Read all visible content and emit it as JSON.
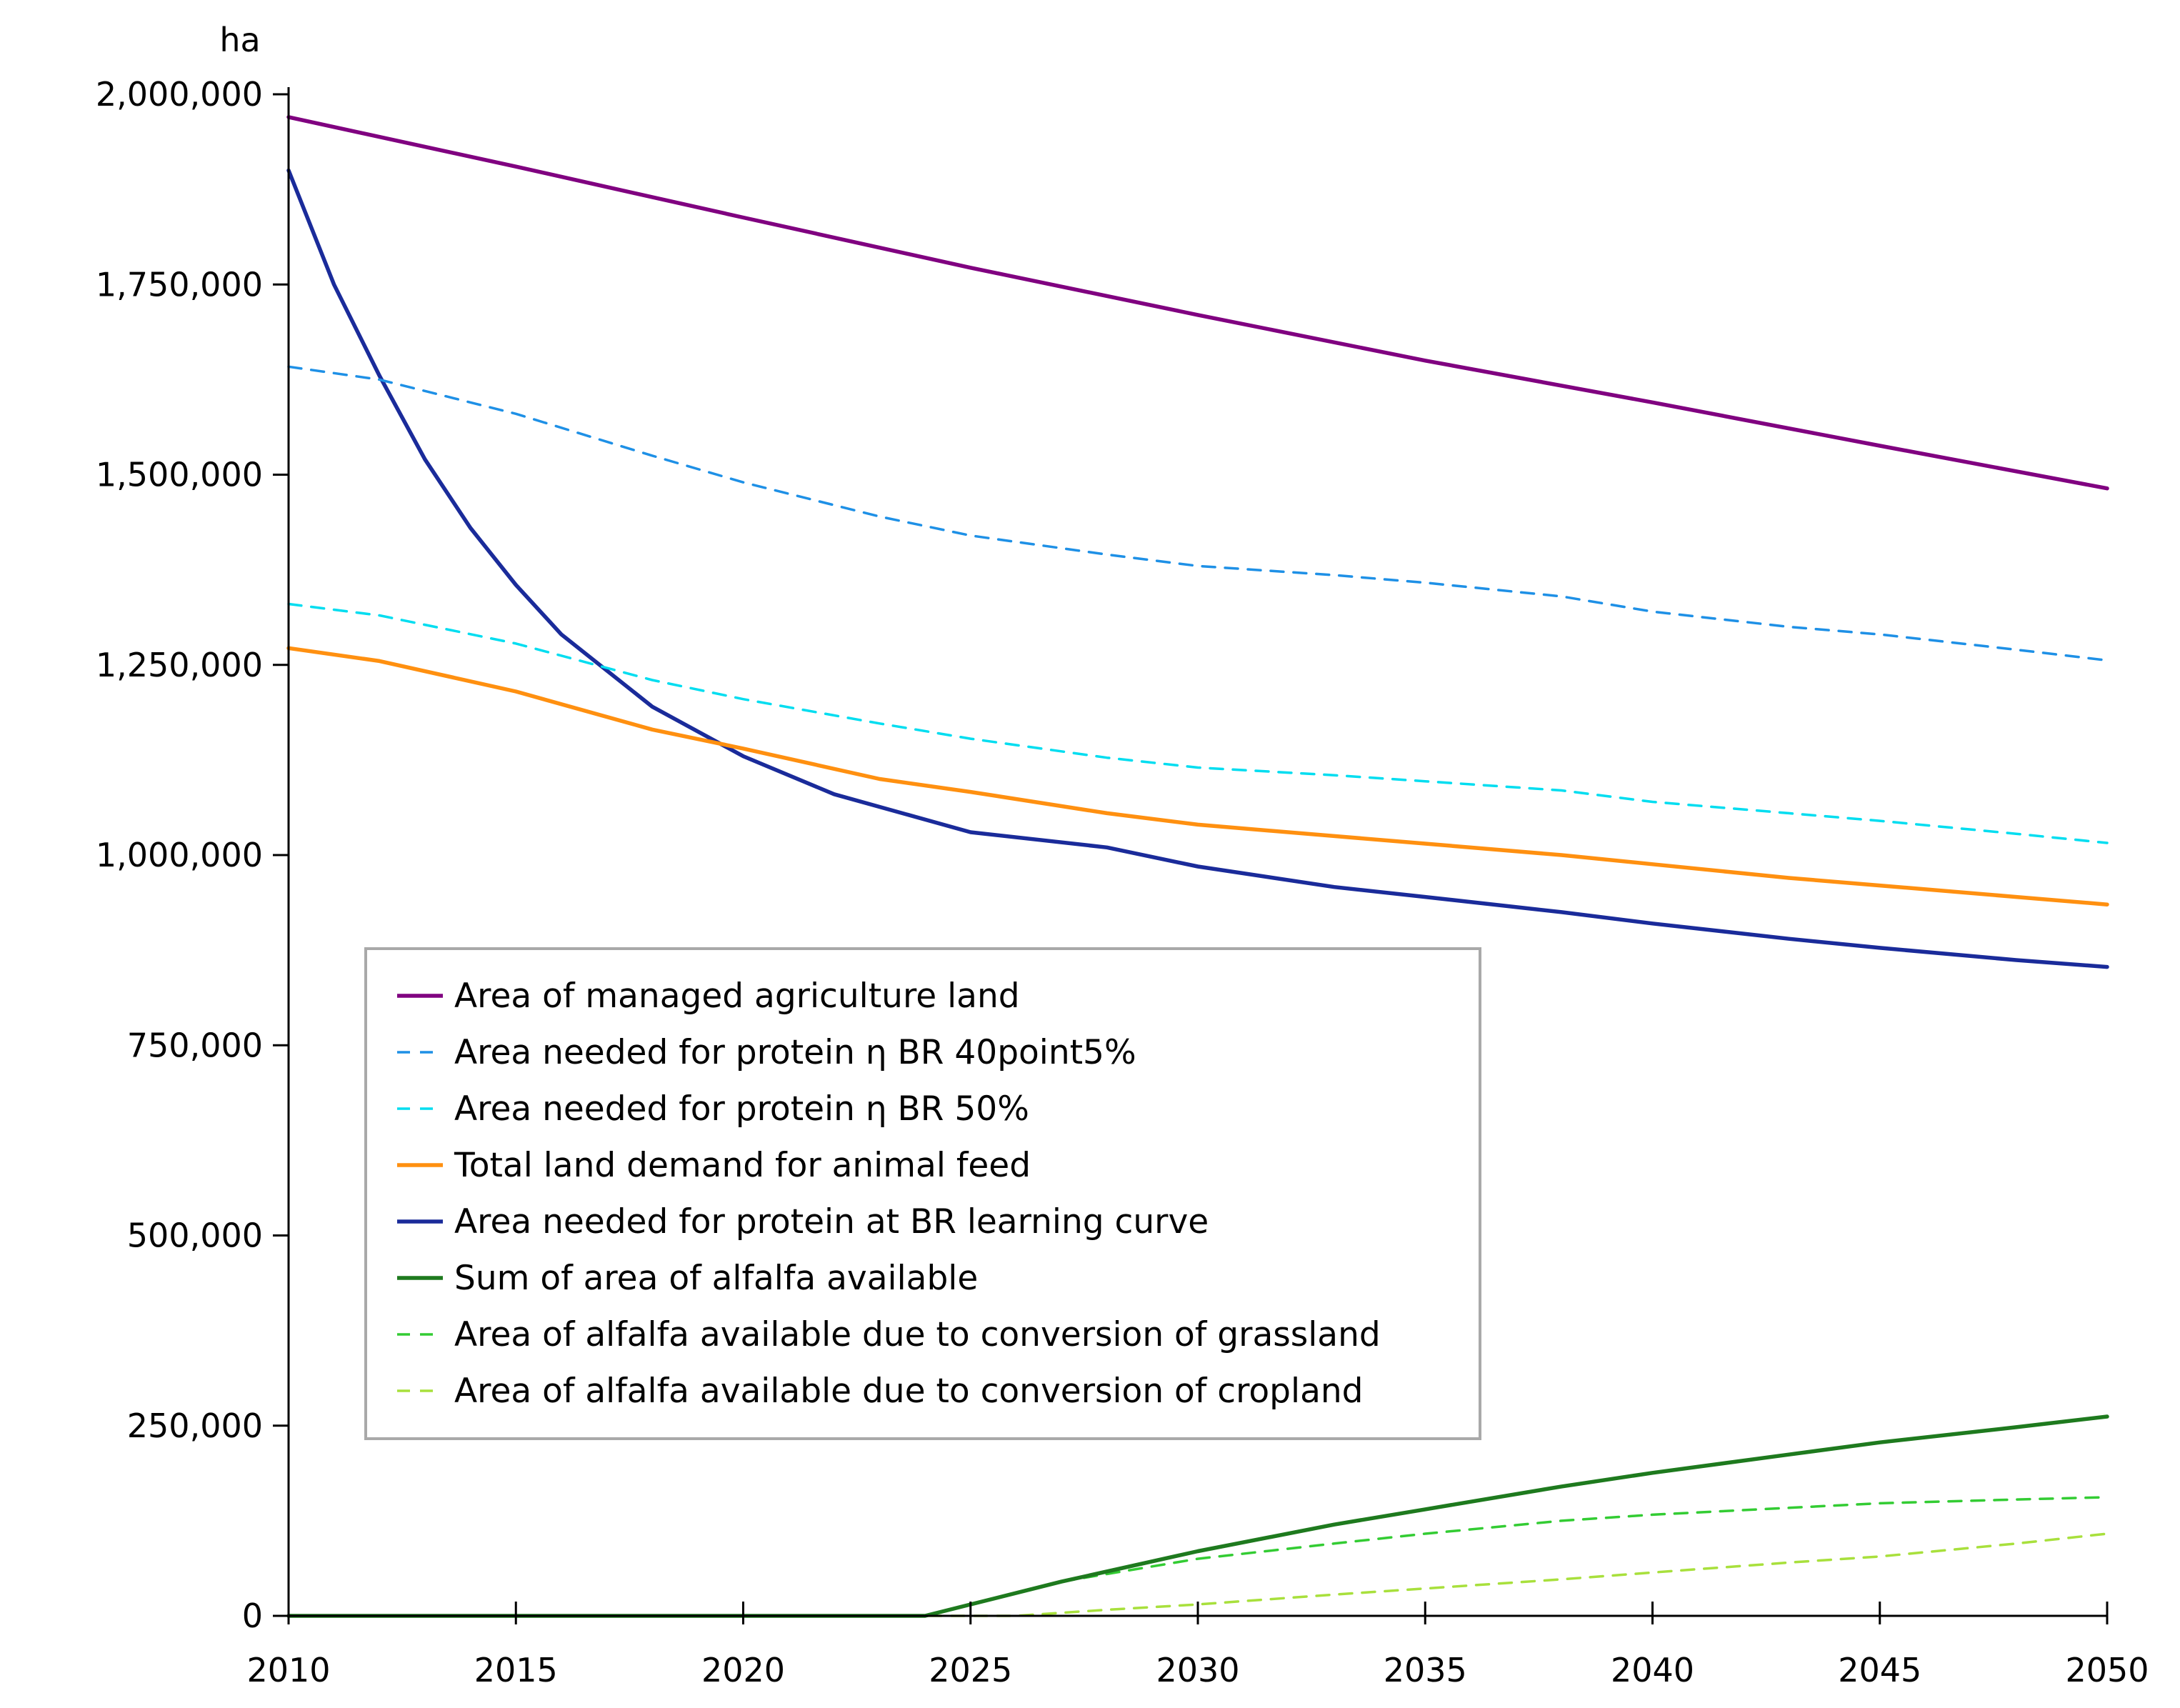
{
  "chart_data": {
    "type": "line",
    "title": "",
    "xlabel": "",
    "ylabel": "ha",
    "xlim": [
      2010,
      2050
    ],
    "ylim": [
      0,
      2000000
    ],
    "x_ticks": [
      2010,
      2015,
      2020,
      2025,
      2030,
      2035,
      2040,
      2045,
      2050
    ],
    "x_tick_labels": [
      "2010",
      "2015",
      "2020",
      "2025",
      "2030",
      "2035",
      "2040",
      "2045",
      "2050"
    ],
    "y_ticks": [
      0,
      250000,
      500000,
      750000,
      1000000,
      1250000,
      1500000,
      1750000,
      2000000
    ],
    "y_tick_labels": [
      "0",
      "250,000",
      "500,000",
      "750,000",
      "1,000,000",
      "1,250,000",
      "1,500,000",
      "1,750,000",
      "2,000,000"
    ],
    "grid": false,
    "legend_position": "center-left",
    "series": [
      {
        "name": "Area of managed agriculture land",
        "color": "#800080",
        "dash": "solid",
        "x": [
          2010,
          2015,
          2020,
          2025,
          2030,
          2035,
          2040,
          2045,
          2050
        ],
        "y": [
          1970000,
          1905000,
          1838000,
          1772000,
          1710000,
          1650000,
          1595000,
          1538000,
          1482000
        ]
      },
      {
        "name": "Area needed for protein η BR 40point5%",
        "color": "#1E90E6",
        "dash": "dashed",
        "x": [
          2010,
          2012,
          2015,
          2018,
          2020,
          2023,
          2025,
          2028,
          2030,
          2033,
          2035,
          2038,
          2040,
          2043,
          2045,
          2048,
          2050
        ],
        "y": [
          1642000,
          1625000,
          1580000,
          1525000,
          1490000,
          1445000,
          1420000,
          1395000,
          1380000,
          1368000,
          1358000,
          1340000,
          1320000,
          1300000,
          1290000,
          1270000,
          1256000
        ]
      },
      {
        "name": "Area needed for protein η BR 50%",
        "color": "#00DDF0",
        "dash": "dashed",
        "x": [
          2010,
          2012,
          2015,
          2018,
          2020,
          2023,
          2025,
          2028,
          2030,
          2033,
          2035,
          2038,
          2040,
          2043,
          2045,
          2048,
          2050
        ],
        "y": [
          1330000,
          1315000,
          1278000,
          1230000,
          1205000,
          1173000,
          1153000,
          1128000,
          1115000,
          1105000,
          1097000,
          1085000,
          1070000,
          1055000,
          1045000,
          1028000,
          1016000
        ]
      },
      {
        "name": "Total land demand for animal feed",
        "color": "#FF9010",
        "dash": "solid",
        "x": [
          2010,
          2012,
          2015,
          2018,
          2020,
          2023,
          2025,
          2028,
          2030,
          2033,
          2035,
          2038,
          2040,
          2043,
          2045,
          2048,
          2050
        ],
        "y": [
          1272000,
          1255000,
          1215000,
          1165000,
          1140000,
          1100000,
          1083000,
          1055000,
          1040000,
          1025000,
          1015000,
          1000000,
          988000,
          970000,
          960000,
          945000,
          935000
        ]
      },
      {
        "name": "Area needed for protein at BR learning curve",
        "color": "#1A2B9A",
        "dash": "solid",
        "x": [
          2010,
          2011,
          2012,
          2013,
          2014,
          2015,
          2016,
          2018,
          2020,
          2022,
          2025,
          2028,
          2030,
          2033,
          2035,
          2038,
          2040,
          2043,
          2045,
          2048,
          2050
        ],
        "y": [
          1900000,
          1750000,
          1630000,
          1520000,
          1430000,
          1355000,
          1290000,
          1195000,
          1130000,
          1080000,
          1030000,
          1010000,
          985000,
          958000,
          945000,
          925000,
          910000,
          890000,
          878000,
          862000,
          853000
        ]
      },
      {
        "name": "Sum of area of alfalfa available",
        "color": "#1E7A1E",
        "dash": "solid",
        "x": [
          2010,
          2024,
          2025,
          2027,
          2030,
          2033,
          2035,
          2038,
          2040,
          2043,
          2045,
          2048,
          2050
        ],
        "y": [
          0,
          0,
          15000,
          45000,
          85000,
          120000,
          140000,
          170000,
          188000,
          212000,
          228000,
          248000,
          262000
        ]
      },
      {
        "name": "Area of alfalfa available due to conversion of grassland",
        "color": "#33CC33",
        "dash": "dashed",
        "x": [
          2010,
          2024,
          2025,
          2027,
          2030,
          2033,
          2035,
          2038,
          2040,
          2043,
          2045,
          2048,
          2050
        ],
        "y": [
          0,
          0,
          15000,
          45000,
          75000,
          95000,
          108000,
          125000,
          133000,
          142000,
          148000,
          153000,
          156000
        ]
      },
      {
        "name": "Area of alfalfa available due to conversion of cropland",
        "color": "#A8E03C",
        "dash": "dashed",
        "x": [
          2010,
          2026,
          2028,
          2030,
          2033,
          2035,
          2038,
          2040,
          2043,
          2045,
          2048,
          2050
        ],
        "y": [
          0,
          0,
          8000,
          15000,
          28000,
          36000,
          48000,
          57000,
          70000,
          78000,
          95000,
          108000
        ]
      }
    ]
  }
}
